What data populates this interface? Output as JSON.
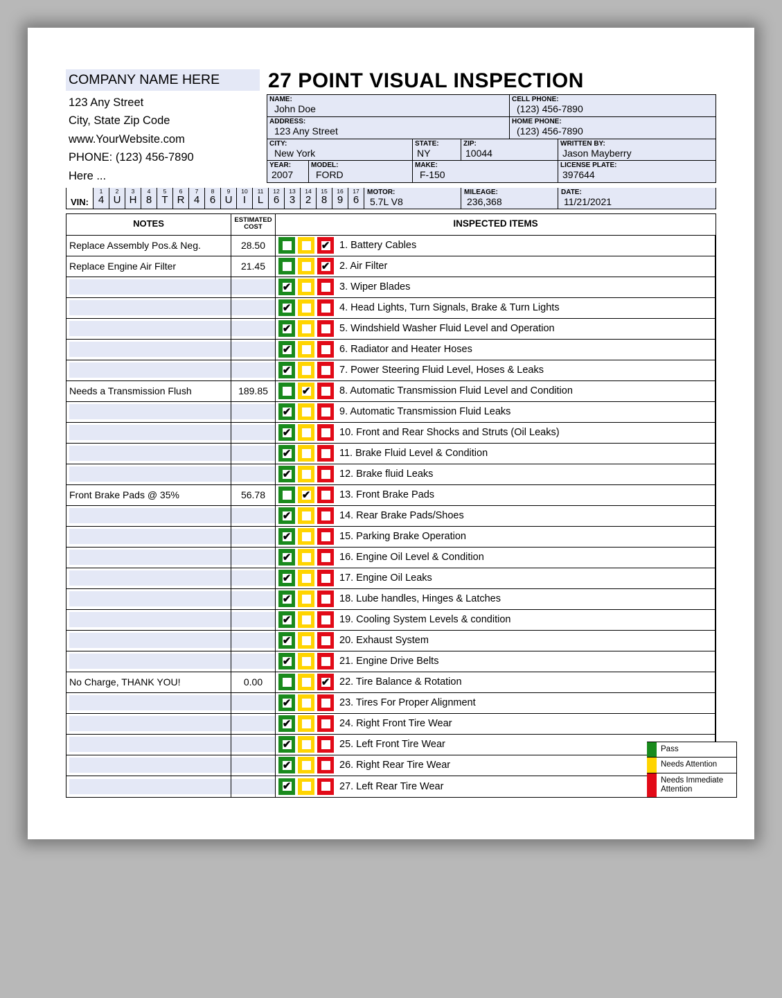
{
  "title": "27 POINT VISUAL INSPECTION",
  "company": {
    "name": "COMPANY NAME HERE",
    "lines": [
      "123 Any Street",
      "City, State Zip Code",
      "www.YourWebsite.com",
      "PHONE: (123) 456-7890",
      "Here ..."
    ]
  },
  "header": {
    "name_label": "NAME:",
    "name": "John Doe",
    "cell_label": "CELL PHONE:",
    "cell": "(123) 456-7890",
    "address_label": "ADDRESS:",
    "address": "123 Any Street",
    "home_label": "HOME PHONE:",
    "home": "(123) 456-7890",
    "city_label": "CITY:",
    "city": "New York",
    "state_label": "STATE:",
    "state": "NY",
    "zip_label": "ZIP:",
    "zip": "10044",
    "written_label": "WRITTEN BY:",
    "written": "Jason Mayberry",
    "year_label": "YEAR:",
    "year": "2007",
    "model_label": "MODEL:",
    "model": "FORD",
    "make_label": "MAKE:",
    "make": "F-150",
    "plate_label": "LICENSE PLATE:",
    "plate": "397644"
  },
  "vin": {
    "label": "VIN:",
    "nums": [
      "1",
      "2",
      "3",
      "4",
      "5",
      "6",
      "7",
      "8",
      "9",
      "10",
      "11",
      "12",
      "13",
      "14",
      "15",
      "16",
      "17"
    ],
    "chars": [
      "4",
      "U",
      "H",
      "8",
      "T",
      "R",
      "4",
      "6",
      "U",
      "I",
      "L",
      "6",
      "3",
      "2",
      "8",
      "9",
      "6"
    ],
    "motor_label": "MOTOR:",
    "motor": "5.7L V8",
    "mileage_label": "MILEAGE:",
    "mileage": "236,368",
    "date_label": "DATE:",
    "date": "11/21/2021"
  },
  "columns": {
    "notes": "NOTES",
    "cost": "ESTIMATED COST",
    "items": "INSPECTED ITEMS"
  },
  "colors": {
    "green": "#198a1c",
    "yellow": "#ffd400",
    "red": "#e20a17",
    "light": "#e4e8f6"
  },
  "legend": {
    "pass": "Pass",
    "needs": "Needs Attention",
    "immediate": "Needs Immediate Attention"
  },
  "items": [
    {
      "n": "1",
      "label": "Battery Cables",
      "status": "r",
      "note": "Replace Assembly Pos.& Neg.",
      "cost": "28.50"
    },
    {
      "n": "2",
      "label": "Air Filter",
      "status": "r",
      "note": "Replace Engine Air Filter",
      "cost": "21.45"
    },
    {
      "n": "3",
      "label": "Wiper Blades",
      "status": "g",
      "note": "",
      "cost": ""
    },
    {
      "n": "4",
      "label": "Head Lights, Turn Signals, Brake & Turn Lights",
      "status": "g",
      "note": "",
      "cost": ""
    },
    {
      "n": "5",
      "label": "Windshield Washer Fluid Level and Operation",
      "status": "g",
      "note": "",
      "cost": ""
    },
    {
      "n": "6",
      "label": "Radiator and Heater Hoses",
      "status": "g",
      "note": "",
      "cost": ""
    },
    {
      "n": "7",
      "label": "Power Steering Fluid Level, Hoses & Leaks",
      "status": "g",
      "note": "",
      "cost": ""
    },
    {
      "n": "8",
      "label": "Automatic Transmission Fluid Level and Condition",
      "status": "y",
      "note": "Needs a Transmission Flush",
      "cost": "189.85"
    },
    {
      "n": "9",
      "label": "Automatic Transmission Fluid Leaks",
      "status": "g",
      "note": "",
      "cost": ""
    },
    {
      "n": "10",
      "label": "Front and Rear Shocks and Struts (Oil Leaks)",
      "status": "g",
      "note": "",
      "cost": ""
    },
    {
      "n": "11",
      "label": "Brake Fluid Level & Condition",
      "status": "g",
      "note": "",
      "cost": ""
    },
    {
      "n": "12",
      "label": "Brake fluid Leaks",
      "status": "g",
      "note": "",
      "cost": ""
    },
    {
      "n": "13",
      "label": "Front Brake Pads",
      "status": "y",
      "note": "Front Brake Pads @ 35%",
      "cost": "56.78"
    },
    {
      "n": "14",
      "label": "Rear Brake Pads/Shoes",
      "status": "g",
      "note": "",
      "cost": ""
    },
    {
      "n": "15",
      "label": "Parking Brake Operation",
      "status": "g",
      "note": "",
      "cost": ""
    },
    {
      "n": "16",
      "label": "Engine Oil Level & Condition",
      "status": "g",
      "note": "",
      "cost": ""
    },
    {
      "n": "17",
      "label": "Engine Oil Leaks",
      "status": "g",
      "note": "",
      "cost": ""
    },
    {
      "n": "18",
      "label": "Lube handles, Hinges & Latches",
      "status": "g",
      "note": "",
      "cost": ""
    },
    {
      "n": "19",
      "label": "Cooling System Levels & condition",
      "status": "g",
      "note": "",
      "cost": ""
    },
    {
      "n": "20",
      "label": "Exhaust System",
      "status": "g",
      "note": "",
      "cost": ""
    },
    {
      "n": "21",
      "label": "Engine Drive Belts",
      "status": "g",
      "note": "",
      "cost": ""
    },
    {
      "n": "22",
      "label": "Tire Balance & Rotation",
      "status": "r",
      "note": "No Charge, THANK YOU!",
      "cost": "0.00"
    },
    {
      "n": "23",
      "label": "Tires For Proper Alignment",
      "status": "g",
      "note": "",
      "cost": ""
    },
    {
      "n": "24",
      "label": "Right Front Tire Wear",
      "status": "g",
      "note": "",
      "cost": ""
    },
    {
      "n": "25",
      "label": "Left Front Tire Wear",
      "status": "g",
      "note": "",
      "cost": ""
    },
    {
      "n": "26",
      "label": "Right Rear Tire Wear",
      "status": "g",
      "note": "",
      "cost": ""
    },
    {
      "n": "27",
      "label": "Left Rear Tire Wear",
      "status": "g",
      "note": "",
      "cost": ""
    }
  ]
}
